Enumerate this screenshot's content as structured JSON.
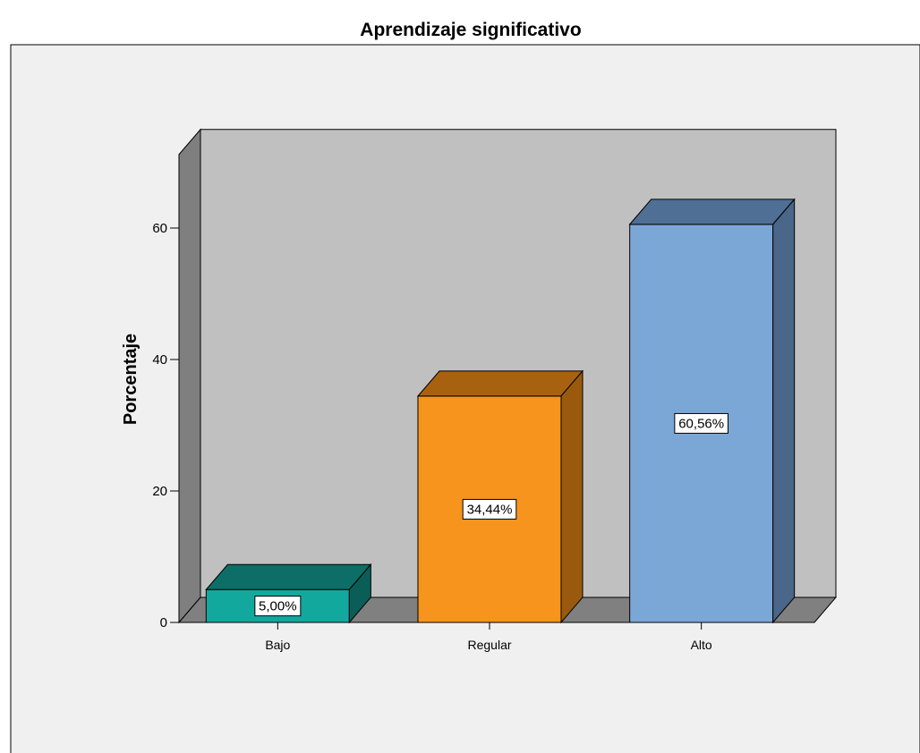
{
  "chart_data": {
    "type": "bar",
    "title": "Aprendizaje significativo",
    "ylabel": "Porcentaje",
    "xlabel": "",
    "categories": [
      "Bajo",
      "Regular",
      "Alto"
    ],
    "values": [
      5.0,
      34.44,
      60.56
    ],
    "data_labels": [
      "5,00%",
      "34,44%",
      "60,56%"
    ],
    "ylim": [
      0,
      75
    ],
    "yticks": [
      0,
      20,
      40,
      60
    ],
    "style": "3d",
    "grid": false,
    "legend": "none",
    "colors": {
      "bars": [
        "#13a89e",
        "#f7941d",
        "#7ba7d7"
      ],
      "bar_tops": [
        "#0c6e67",
        "#a8620f",
        "#4f6f95"
      ],
      "bar_sides": [
        "#0b5e58",
        "#9a5a0e",
        "#4a6689"
      ],
      "wall_back": "#c0c0c0",
      "wall_side": "#7f7f7f",
      "floor": "#808080",
      "outer_panel": "#f0f0f0"
    }
  }
}
